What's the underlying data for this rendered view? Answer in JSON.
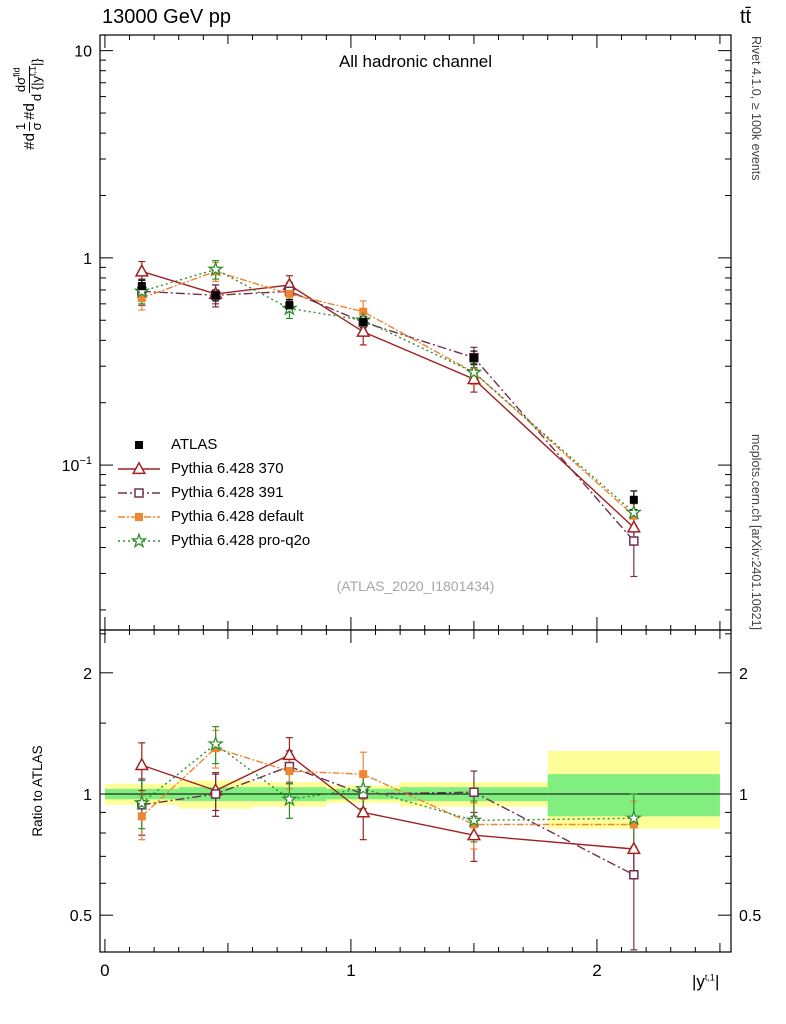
{
  "header": {
    "beam": "13000 GeV pp",
    "process": "tt̄"
  },
  "side_texts": {
    "rivet": "Rivet 4.1.0, ≥ 100k events",
    "mcplots": "mcplots.cern.ch [arXiv:2401.10621]"
  },
  "chart_data": {
    "type": "line",
    "title": "All hadronic channel",
    "watermark": "(ATLAS_2020_I1801434)",
    "ylabel": {
      "prefix1": "#d",
      "frac1_num": "1",
      "frac1_den": "σ",
      "prefix2": "#d",
      "frac2_num": "dσ",
      "frac2_num_sup": "fid",
      "frac2_den": "d {|y",
      "frac2_den_sup": "t,1",
      "frac2_den_end": "|}"
    },
    "ratio_ylabel": "Ratio to ATLAS",
    "xlabel": {
      "main": "|y",
      "sup": "t,1",
      "end": "|"
    },
    "axes": {
      "x": {
        "min": -0.02,
        "max": 2.545,
        "majors": [
          0,
          1,
          2
        ],
        "major_labels": [
          "0",
          "1",
          "2"
        ]
      },
      "y_main": {
        "scale": "log",
        "min": 0.016,
        "max": 11.9,
        "majors": [
          10,
          1,
          0.1
        ],
        "labels": [
          {
            "t": "10"
          },
          {
            "t": "1"
          },
          {
            "t": "10",
            "sup": "−1"
          }
        ]
      },
      "y_ratio": {
        "scale": "log",
        "min": 0.405,
        "max": 2.555,
        "majors": [
          2,
          1,
          0.5
        ],
        "labels": [
          {
            "t": "2"
          },
          {
            "t": "1"
          },
          {
            "t": "0.5"
          }
        ],
        "minors": [
          0.6,
          0.7,
          0.8,
          0.9,
          1.5,
          2.5
        ]
      }
    },
    "bands": {
      "bin_edges": [
        0,
        0.3,
        0.6,
        0.9,
        1.2,
        1.8,
        2.5
      ],
      "yellow": {
        "color": "#ffff99",
        "lo": [
          0.94,
          0.92,
          0.93,
          0.95,
          0.93,
          0.82
        ],
        "hi": [
          1.06,
          1.08,
          1.07,
          1.05,
          1.07,
          1.28
        ]
      },
      "green": {
        "color": "#80ef80",
        "lo": [
          0.97,
          0.96,
          0.96,
          0.97,
          0.96,
          0.88
        ],
        "hi": [
          1.03,
          1.04,
          1.04,
          1.03,
          1.04,
          1.12
        ]
      }
    },
    "x_points": [
      0.15,
      0.45,
      0.75,
      1.05,
      1.5,
      2.15
    ],
    "series": [
      {
        "id": "atlas",
        "label": "ATLAS",
        "color": "#000000",
        "marker": "square-filled",
        "line": "none",
        "y": [
          0.73,
          0.66,
          0.59,
          0.49,
          0.33,
          0.068
        ],
        "yerr": [
          0.05,
          0.04,
          0.04,
          0.03,
          0.025,
          0.007
        ]
      },
      {
        "id": "pythia-370",
        "label": "Pythia 6.428 370",
        "color": "#a02020",
        "marker": "triangle-open",
        "line": "solid",
        "y": [
          0.86,
          0.67,
          0.74,
          0.44,
          0.26,
          0.05
        ],
        "yerr": [
          0.1,
          0.07,
          0.08,
          0.06,
          0.035,
          0.007
        ],
        "ratio": [
          1.18,
          1.02,
          1.25,
          0.9,
          0.79,
          0.73
        ],
        "ratio_err": [
          0.16,
          0.11,
          0.13,
          0.13,
          0.11,
          0.1
        ]
      },
      {
        "id": "pythia-391",
        "label": "Pythia 6.428 391",
        "color": "#703050",
        "marker": "square-open",
        "line": "dashdot",
        "y": [
          0.69,
          0.66,
          0.69,
          0.49,
          0.33,
          0.043
        ],
        "yerr": [
          0.1,
          0.08,
          0.07,
          0.05,
          0.04,
          0.014
        ],
        "ratio": [
          0.94,
          1.0,
          1.17,
          1.0,
          1.01,
          0.63
        ],
        "ratio_err": [
          0.15,
          0.12,
          0.11,
          0.11,
          0.13,
          0.22
        ]
      },
      {
        "id": "pythia-default",
        "label": "Pythia 6.428 default",
        "color": "#ee8532",
        "marker": "square-filled",
        "line": "dashdotdot",
        "y": [
          0.64,
          0.86,
          0.67,
          0.55,
          0.28,
          0.057
        ],
        "yerr": [
          0.08,
          0.09,
          0.07,
          0.07,
          0.035,
          0.008
        ],
        "ratio": [
          0.88,
          1.3,
          1.14,
          1.12,
          0.84,
          0.84
        ],
        "ratio_err": [
          0.11,
          0.14,
          0.11,
          0.15,
          0.11,
          0.12
        ]
      },
      {
        "id": "pythia-proq2o",
        "label": "Pythia 6.428 pro-q2o",
        "color": "#2f8f2f",
        "marker": "star-open",
        "line": "dotted",
        "y": [
          0.69,
          0.88,
          0.57,
          0.5,
          0.28,
          0.059
        ],
        "yerr": [
          0.09,
          0.09,
          0.06,
          0.05,
          0.03,
          0.008
        ],
        "ratio": [
          0.95,
          1.33,
          0.97,
          1.03,
          0.86,
          0.87
        ],
        "ratio_err": [
          0.13,
          0.14,
          0.1,
          0.11,
          0.1,
          0.13
        ]
      }
    ]
  }
}
